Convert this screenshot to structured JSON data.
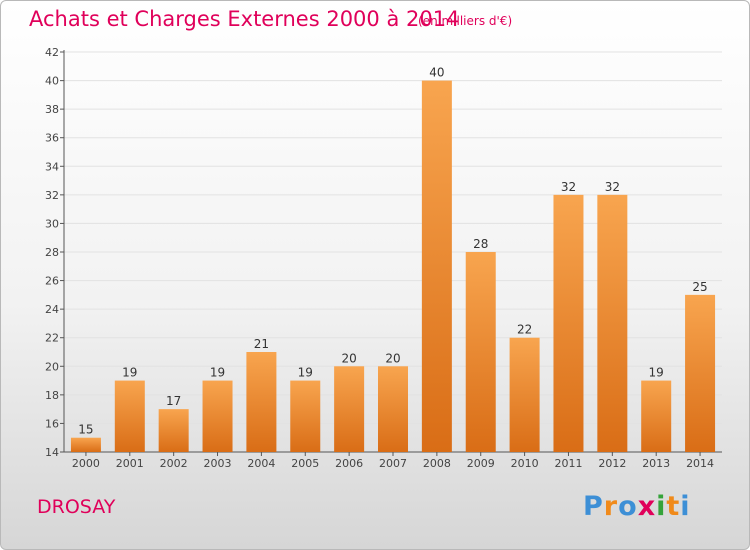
{
  "header": {
    "title": "Achats et Charges Externes 2000 à 2014",
    "subtitle": "(en milliers d'€)"
  },
  "footer": {
    "place": "DROSAY",
    "logo": "Proxiti"
  },
  "colors": {
    "title": "#e0005a",
    "bar_light": "#f8a54f",
    "bar_dark": "#d96d16",
    "axis": "#555555",
    "grid": "#e2e2e2",
    "logo": [
      "#3d8fd6",
      "#f08a1a",
      "#3d8fd6",
      "#e0005a",
      "#35a33a",
      "#f08a1a",
      "#3d8fd6"
    ]
  },
  "chart_data": {
    "type": "bar",
    "categories": [
      "2000",
      "2001",
      "2002",
      "2003",
      "2004",
      "2005",
      "2006",
      "2007",
      "2008",
      "2009",
      "2010",
      "2011",
      "2012",
      "2013",
      "2014"
    ],
    "values": [
      15,
      19,
      17,
      19,
      21,
      19,
      20,
      20,
      40,
      28,
      22,
      32,
      32,
      19,
      25
    ],
    "ylim": [
      14,
      42
    ],
    "yticks": [
      14,
      16,
      18,
      20,
      22,
      24,
      26,
      28,
      30,
      32,
      34,
      36,
      38,
      40,
      42
    ],
    "grid": "horizontal, faint",
    "data_labels": true
  }
}
